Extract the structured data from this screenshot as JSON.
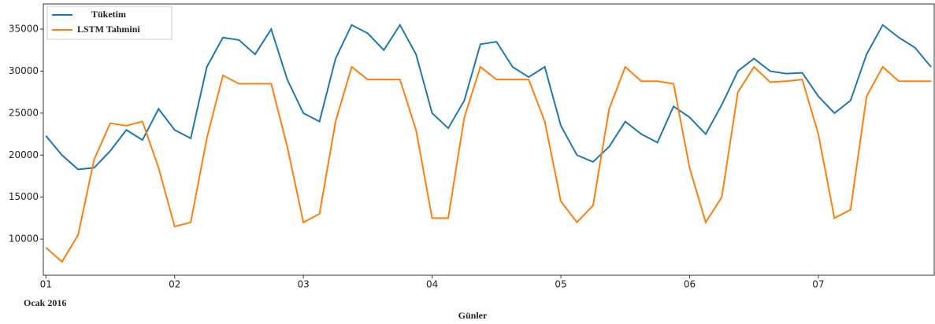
{
  "chart_data": {
    "type": "line",
    "x_label": "Günler",
    "annotation": "Ocak 2016",
    "legend": "upper left",
    "x": [
      1,
      1.125,
      1.25,
      1.375,
      1.5,
      1.625,
      1.75,
      1.875,
      2,
      2.125,
      2.25,
      2.375,
      2.5,
      2.625,
      2.75,
      2.875,
      3,
      3.125,
      3.25,
      3.375,
      3.5,
      3.625,
      3.75,
      3.875,
      4,
      4.125,
      4.25,
      4.375,
      4.5,
      4.625,
      4.75,
      4.875,
      5,
      5.125,
      5.25,
      5.375,
      5.5,
      5.625,
      5.75,
      5.875,
      6,
      6.125,
      6.25,
      6.375,
      6.5,
      6.625,
      6.75,
      6.875,
      7,
      7.125,
      7.25,
      7.375,
      7.5,
      7.625,
      7.75,
      7.875
    ],
    "series": [
      {
        "name": "Tüketim",
        "color": "#1f77b4",
        "values": [
          22300,
          20000,
          18300,
          18500,
          20500,
          23000,
          21800,
          25500,
          23000,
          22000,
          30500,
          34000,
          33700,
          32000,
          35000,
          29000,
          25000,
          24000,
          31500,
          35500,
          34500,
          32500,
          35500,
          32000,
          25000,
          23200,
          26500,
          33200,
          33500,
          30500,
          29300,
          30500,
          23500,
          20000,
          19200,
          21000,
          24000,
          22500,
          21500,
          25800,
          24500,
          22500,
          26000,
          30000,
          31500,
          30000,
          29700,
          29800,
          27000,
          25000,
          26500,
          32000,
          35500,
          34000,
          32800,
          30500
        ]
      },
      {
        "name": "LSTM Tahmini",
        "color": "#ff7f0e",
        "values": [
          9000,
          7300,
          10500,
          19500,
          23800,
          23500,
          24000,
          18500,
          11500,
          12000,
          22000,
          29500,
          28500,
          28500,
          28500,
          21000,
          12000,
          13000,
          24000,
          30500,
          29000,
          29000,
          29000,
          23000,
          12500,
          12500,
          24500,
          30500,
          29000,
          29000,
          29000,
          24000,
          14500,
          12000,
          14000,
          25500,
          30500,
          28800,
          28800,
          28500,
          18500,
          12000,
          15000,
          27500,
          30500,
          28700,
          28800,
          29000,
          22500,
          12500,
          13500,
          27000,
          30500,
          28800,
          28800,
          28800
        ]
      }
    ],
    "xlim": [
      0.98,
      7.9
    ],
    "xticks": [
      {
        "value": 1,
        "label": "01"
      },
      {
        "value": 2,
        "label": "02"
      },
      {
        "value": 3,
        "label": "03"
      },
      {
        "value": 4,
        "label": "04"
      },
      {
        "value": 5,
        "label": "05"
      },
      {
        "value": 6,
        "label": "06"
      },
      {
        "value": 7,
        "label": "07"
      }
    ],
    "ylim": [
      5700,
      38000
    ],
    "yticks": [
      10000,
      15000,
      20000,
      25000,
      30000,
      35000
    ]
  }
}
